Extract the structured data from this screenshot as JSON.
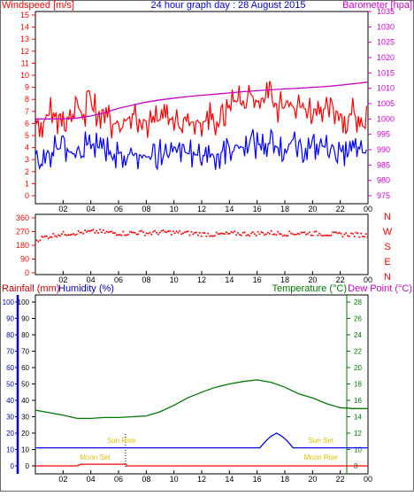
{
  "header": {
    "left_label": "Windspeed [m/s]",
    "title": "24 hour graph day : 28 August 2015",
    "right_label": "Barometer [hpa]"
  },
  "bottom_header": {
    "rainfall_label": "Rainfall (mm)",
    "humidity_label": "Humidity (%)",
    "temperature_label": "Temperature (°C)",
    "dewpoint_label": "Dew Point (°C)"
  },
  "annotations": {
    "sun_rise": "Sun Rise",
    "sun_set": "Sun Set",
    "moon_set": "Moon Set",
    "moon_rise": "Moon Rise"
  },
  "colors": {
    "wind": "#ff0000",
    "gust": "#0000ff",
    "barometer": "#cc00cc",
    "direction": "#ff0000",
    "temperature": "#007700",
    "humidity_axis": "#0000cc",
    "rain_axis": "#cc0000",
    "dewpoint_axis": "#cc00cc",
    "humidity_line": "#0000ff",
    "rain_line": "#ff0000",
    "sun_moon_label": "#e0c000",
    "title": "#0000cc",
    "axis": "#000000"
  },
  "chart_data": [
    {
      "type": "line",
      "name": "wind-barometer",
      "x_tick_labels": [
        "02",
        "04",
        "06",
        "08",
        "10",
        "12",
        "14",
        "16",
        "18",
        "20",
        "22",
        "00"
      ],
      "x_range_hours": [
        0,
        24
      ],
      "ylim_left": [
        0,
        15
      ],
      "left_ticks": [
        "0",
        "1",
        "2",
        "3",
        "4",
        "5",
        "6",
        "7",
        "8",
        "9",
        "10",
        "11",
        "12",
        "13",
        "14",
        "15"
      ],
      "ylim_right": [
        975,
        1035
      ],
      "right_ticks": [
        "975",
        "980",
        "985",
        "990",
        "995",
        "1000",
        "1005",
        "1010",
        "1015",
        "1020",
        "1025",
        "1030",
        "1035"
      ],
      "series": [
        {
          "key": "gust",
          "x": [
            0,
            0.5,
            1,
            1.5,
            2,
            2.5,
            3,
            3.5,
            4,
            4.5,
            5,
            5.5,
            6,
            6.5,
            7,
            7.5,
            8,
            8.5,
            9,
            9.5,
            10,
            10.5,
            11,
            11.5,
            12,
            12.5,
            13,
            13.5,
            14,
            14.5,
            15,
            15.5,
            16,
            16.5,
            17,
            17.5,
            18,
            18.5,
            19,
            19.5,
            20,
            20.5,
            21,
            21.5,
            22,
            22.5,
            23,
            23.5,
            24
          ],
          "values": [
            6.5,
            6,
            6.8,
            6.5,
            7,
            6.2,
            7.5,
            6.6,
            8,
            7,
            7.2,
            6,
            6,
            6.2,
            6.8,
            6.5,
            6.2,
            6,
            6.3,
            6.5,
            6.2,
            6.7,
            6,
            6.2,
            6,
            6.4,
            6.1,
            6.5,
            7.5,
            8,
            7.4,
            8.5,
            7.8,
            8.2,
            8,
            7.5,
            7.8,
            8,
            7.4,
            7.2,
            7,
            7.5,
            7,
            7.2,
            6.8,
            6.5,
            6.9,
            6.5,
            6.4
          ]
        },
        {
          "key": "wind",
          "x": [
            0,
            0.5,
            1,
            1.5,
            2,
            2.5,
            3,
            3.5,
            4,
            4.5,
            5,
            5.5,
            6,
            6.5,
            7,
            7.5,
            8,
            8.5,
            9,
            9.5,
            10,
            10.5,
            11,
            11.5,
            12,
            12.5,
            13,
            13.5,
            14,
            14.5,
            15,
            15.5,
            16,
            16.5,
            17,
            17.5,
            18,
            18.5,
            19,
            19.5,
            20,
            20.5,
            21,
            21.5,
            22,
            22.5,
            23,
            23.5,
            24
          ],
          "values": [
            3,
            2.5,
            3.5,
            3.8,
            4,
            3.6,
            3.8,
            4,
            4.5,
            4,
            3.8,
            3.2,
            3.5,
            3.3,
            3.6,
            3.4,
            3.2,
            3.3,
            3.5,
            3.6,
            3.4,
            3.8,
            3.5,
            3.4,
            3.3,
            3.5,
            3.4,
            3.6,
            4,
            4.2,
            4,
            4.5,
            4.2,
            4.4,
            4.3,
            4,
            4.2,
            4.3,
            3.9,
            4,
            3.8,
            4.2,
            4,
            3.9,
            3.7,
            3.5,
            3.8,
            3.6,
            3.5
          ]
        },
        {
          "key": "barometer",
          "x": [
            0,
            1,
            2,
            3,
            4,
            5,
            6,
            7,
            8,
            9,
            10,
            11,
            12,
            13,
            14,
            15,
            16,
            17,
            18,
            19,
            20,
            21,
            22,
            23,
            24
          ],
          "values": [
            1000,
            1000,
            1000,
            1000.3,
            1001,
            1002,
            1003.5,
            1004.5,
            1005.5,
            1006.2,
            1006.8,
            1007.3,
            1007.7,
            1008.1,
            1008.5,
            1008.9,
            1009.2,
            1009.5,
            1009.8,
            1010,
            1010.3,
            1010.6,
            1011,
            1011.5,
            1012
          ]
        }
      ]
    },
    {
      "type": "scatter",
      "name": "wind-direction",
      "ylim": [
        0,
        360
      ],
      "left_ticks": [
        "0",
        "90",
        "180",
        "270",
        "360"
      ],
      "right_ticks": [
        "N",
        "W",
        "S",
        "E",
        "N"
      ],
      "x_tick_labels": [
        "02",
        "04",
        "06",
        "08",
        "10",
        "12",
        "14",
        "16",
        "18",
        "20",
        "22",
        "00"
      ],
      "x": [
        0,
        0.5,
        1,
        1.5,
        2,
        2.5,
        3,
        3.5,
        4,
        4.5,
        5,
        5.5,
        6,
        6.5,
        7,
        7.5,
        8,
        8.5,
        9,
        9.5,
        10,
        10.5,
        11,
        11.5,
        12,
        12.5,
        13,
        13.5,
        14,
        14.5,
        15,
        15.5,
        16,
        16.5,
        17,
        17.5,
        18,
        18.5,
        19,
        19.5,
        20,
        20.5,
        21,
        21.5,
        22,
        22.5,
        23,
        23.5,
        24
      ],
      "values": [
        210,
        230,
        240,
        250,
        255,
        260,
        262,
        265,
        268,
        270,
        265,
        262,
        260,
        258,
        262,
        264,
        260,
        262,
        265,
        266,
        263,
        262,
        260,
        258,
        255,
        252,
        250,
        252,
        255,
        258,
        256,
        255,
        258,
        260,
        262,
        258,
        256,
        258,
        260,
        262,
        258,
        256,
        255,
        252,
        250,
        252,
        250,
        248,
        246
      ]
    },
    {
      "type": "line",
      "name": "temperature-humidity-rain",
      "x_tick_labels": [
        "02",
        "04",
        "06",
        "08",
        "10",
        "12",
        "14",
        "16",
        "18",
        "20",
        "22",
        "00"
      ],
      "ylim_left": [
        0,
        100
      ],
      "left_ticks": [
        "0",
        "10",
        "20",
        "30",
        "40",
        "50",
        "60",
        "70",
        "80",
        "90",
        "100"
      ],
      "ylim_right": [
        8,
        28
      ],
      "right_ticks": [
        "8",
        "10",
        "12",
        "14",
        "16",
        "18",
        "20",
        "22",
        "24",
        "26",
        "28"
      ],
      "series": [
        {
          "key": "temperature",
          "x": [
            0,
            1,
            2,
            3,
            4,
            5,
            6,
            7,
            8,
            9,
            10,
            11,
            12,
            13,
            14,
            15,
            16,
            17,
            18,
            19,
            20,
            21,
            22,
            23,
            24
          ],
          "values": [
            14.8,
            14.5,
            14.2,
            13.8,
            13.8,
            13.9,
            13.9,
            14,
            14.1,
            14.6,
            15.4,
            16.3,
            17,
            17.6,
            18,
            18.3,
            18.5,
            18.2,
            17.6,
            16.8,
            16.3,
            15.6,
            15.1,
            15,
            15
          ]
        },
        {
          "key": "humidity",
          "x": [
            0,
            16.2,
            16.6,
            17,
            17.4,
            17.8,
            18.2,
            18.6,
            24
          ],
          "values": [
            11,
            11,
            15,
            18,
            20,
            18,
            15,
            11,
            11
          ]
        },
        {
          "key": "rain",
          "x": [
            0,
            3,
            3.3,
            6.5,
            6.6,
            24
          ],
          "values": [
            0,
            0,
            1,
            1,
            0,
            0
          ]
        }
      ]
    }
  ]
}
